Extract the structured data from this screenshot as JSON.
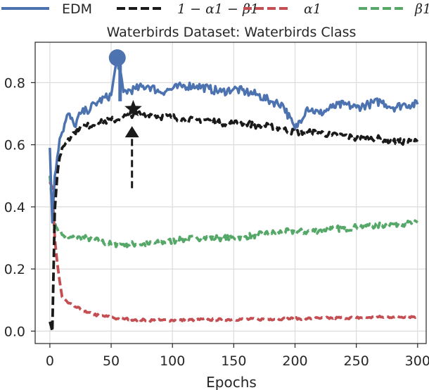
{
  "chart_data": {
    "type": "line",
    "title": "Waterbirds Dataset: Waterbirds Class",
    "xlabel": "Epochs",
    "ylabel": "",
    "xlim": [
      -12,
      307
    ],
    "ylim": [
      -0.04,
      0.93
    ],
    "xticks": [
      0,
      50,
      100,
      150,
      200,
      250,
      300
    ],
    "xtick_labels": [
      "0",
      "50",
      "100",
      "150",
      "200",
      "250",
      "300"
    ],
    "yticks": [
      0.0,
      0.2,
      0.4,
      0.6,
      0.8
    ],
    "ytick_labels": [
      "0.0",
      "0.2",
      "0.4",
      "0.6",
      "0.8"
    ],
    "grid": true,
    "legend_position": "top, above plot",
    "x": [
      0,
      2,
      4,
      6,
      8,
      10,
      15,
      20,
      25,
      30,
      40,
      50,
      55,
      60,
      70,
      80,
      90,
      100,
      110,
      120,
      130,
      140,
      150,
      160,
      170,
      180,
      190,
      200,
      210,
      220,
      230,
      240,
      250,
      260,
      270,
      280,
      290,
      300
    ],
    "series": [
      {
        "name": "EDM",
        "color": "#4c72b0",
        "dash": "solid",
        "values": [
          0.59,
          0.35,
          0.5,
          0.56,
          0.62,
          0.64,
          0.7,
          0.66,
          0.7,
          0.71,
          0.74,
          0.76,
          0.88,
          0.77,
          0.78,
          0.79,
          0.77,
          0.78,
          0.79,
          0.79,
          0.78,
          0.77,
          0.78,
          0.77,
          0.76,
          0.74,
          0.73,
          0.65,
          0.72,
          0.7,
          0.72,
          0.73,
          0.72,
          0.73,
          0.74,
          0.72,
          0.73,
          0.73
        ]
      },
      {
        "name": "1 − α1 − β1",
        "color": "#1a1a1a",
        "dash": "dashed",
        "values": [
          0.03,
          0.0,
          0.39,
          0.5,
          0.56,
          0.59,
          0.62,
          0.64,
          0.66,
          0.66,
          0.67,
          0.68,
          0.68,
          0.69,
          0.7,
          0.7,
          0.69,
          0.69,
          0.68,
          0.68,
          0.68,
          0.67,
          0.67,
          0.67,
          0.66,
          0.66,
          0.65,
          0.64,
          0.64,
          0.64,
          0.63,
          0.63,
          0.62,
          0.62,
          0.62,
          0.61,
          0.61,
          0.61
        ]
      },
      {
        "name": "α1",
        "color": "#c44e52",
        "dash": "dashed",
        "values": [
          0.48,
          0.46,
          0.3,
          0.22,
          0.16,
          0.11,
          0.09,
          0.08,
          0.07,
          0.06,
          0.05,
          0.045,
          0.04,
          0.04,
          0.037,
          0.035,
          0.035,
          0.035,
          0.035,
          0.037,
          0.037,
          0.037,
          0.038,
          0.038,
          0.038,
          0.039,
          0.04,
          0.04,
          0.04,
          0.041,
          0.042,
          0.043,
          0.043,
          0.044,
          0.045,
          0.046,
          0.046,
          0.047
        ]
      },
      {
        "name": "β1",
        "color": "#55a868",
        "dash": "dashed",
        "values": [
          0.5,
          0.42,
          0.35,
          0.33,
          0.32,
          0.31,
          0.3,
          0.3,
          0.3,
          0.3,
          0.29,
          0.28,
          0.28,
          0.28,
          0.28,
          0.28,
          0.285,
          0.29,
          0.295,
          0.3,
          0.3,
          0.3,
          0.3,
          0.305,
          0.31,
          0.315,
          0.32,
          0.32,
          0.32,
          0.325,
          0.33,
          0.33,
          0.335,
          0.34,
          0.34,
          0.345,
          0.345,
          0.35
        ]
      }
    ],
    "annotations": [
      {
        "type": "circle-marker",
        "series": "EDM",
        "x": 55,
        "y": 0.88,
        "color": "#4c72b0"
      },
      {
        "type": "arrow",
        "color": "#1a1a1a",
        "x": 67,
        "from_y": 0.46,
        "to_y": 0.66
      },
      {
        "type": "star-marker",
        "series": "1 − α1 − β1",
        "x": 68,
        "y": 0.715,
        "color": "#1a1a1a"
      }
    ]
  }
}
